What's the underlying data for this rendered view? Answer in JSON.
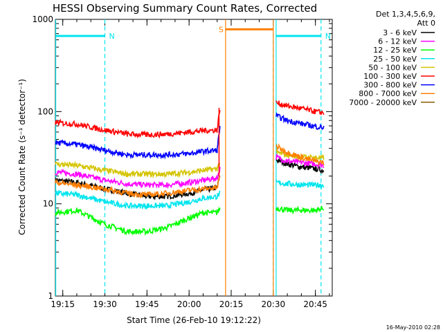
{
  "chart_data": {
    "type": "line",
    "title": "HESSI Observing Summary Count Rates, Corrected",
    "xlabel": "Start Time (26-Feb-10 19:12:22)",
    "ylabel": "Corrected Count Rate (s⁻¹ detector⁻¹)",
    "yscale": "log",
    "xlim": [
      "19:12:22",
      "20:51:00"
    ],
    "ylim": [
      1,
      1000
    ],
    "x_ticks": [
      "19:15",
      "19:30",
      "19:45",
      "20:00",
      "20:15",
      "20:30",
      "20:45"
    ],
    "y_ticks": [
      "1",
      "10",
      "100",
      "1000"
    ],
    "legend_title_lines": [
      "Det 1,3,4,5,6,9,",
      "Att 0"
    ],
    "legend_position": "right, outside plot",
    "footer": "16-May-2010 02:28",
    "gaps": [
      [
        "20:11:00",
        "20:30:00"
      ]
    ],
    "flags": [
      {
        "label": "N",
        "start": "19:12:22",
        "end": "19:30:00",
        "color": "#00e5ee",
        "level": 660
      },
      {
        "label": "N",
        "start": "20:31:00",
        "end": "20:47:00",
        "color": "#00e5ee",
        "level": 660
      },
      {
        "label": "S",
        "start": "20:13:00",
        "end": "20:30:00",
        "color": "#ff7f00",
        "level": 780
      }
    ],
    "vlines": [
      {
        "time": "19:12:30",
        "color": "#00e5ee",
        "style": "solid"
      },
      {
        "time": "19:30:00",
        "color": "#00e5ee",
        "style": "dashed"
      },
      {
        "time": "20:30:00",
        "color": "#00e5ee",
        "style": "dashed"
      },
      {
        "time": "20:31:00",
        "color": "#00e5ee",
        "style": "solid"
      },
      {
        "time": "20:47:00",
        "color": "#00e5ee",
        "style": "dashed"
      },
      {
        "time": "20:13:00",
        "color": "#ff7f00",
        "style": "solid"
      },
      {
        "time": "20:30:00",
        "color": "#ff7f00",
        "style": "solid"
      }
    ],
    "series": [
      {
        "name": "3 - 6 keV",
        "color": "#000000",
        "x": [
          "19:12:22",
          "19:20:00",
          "19:30:00",
          "19:38:00",
          "19:45:00",
          "19:52:00",
          "20:00:00",
          "20:05:00",
          "20:10:00",
          "20:11:00",
          "20:31:00",
          "20:35:00",
          "20:40:00",
          "20:45:00",
          "20:48:00"
        ],
        "y": [
          18,
          17,
          14.5,
          13,
          12,
          12,
          13,
          14,
          15,
          20,
          30,
          27,
          25,
          24,
          23
        ]
      },
      {
        "name": "6 - 12 keV",
        "color": "#ff00ff",
        "x": [
          "19:12:22",
          "19:20:00",
          "19:30:00",
          "19:38:00",
          "19:45:00",
          "19:52:00",
          "20:00:00",
          "20:05:00",
          "20:10:00",
          "20:11:00",
          "20:31:00",
          "20:35:00",
          "20:40:00",
          "20:45:00",
          "20:48:00"
        ],
        "y": [
          22,
          21,
          18,
          16.5,
          16,
          16,
          17,
          18,
          19,
          24,
          32,
          29,
          28,
          27,
          26
        ]
      },
      {
        "name": "12 - 25 keV",
        "color": "#00ff00",
        "x": [
          "19:12:22",
          "19:20:00",
          "19:30:00",
          "19:38:00",
          "19:45:00",
          "19:52:00",
          "20:00:00",
          "20:05:00",
          "20:10:00",
          "20:11:00",
          "20:31:00",
          "20:35:00",
          "20:40:00",
          "20:45:00",
          "20:48:00"
        ],
        "y": [
          8,
          8.5,
          6,
          5,
          5,
          5.5,
          7,
          8,
          8,
          9,
          9,
          8.5,
          8.5,
          8.5,
          9
        ]
      },
      {
        "name": "25 - 50 keV",
        "color": "#00e5ee",
        "x": [
          "19:12:22",
          "19:20:00",
          "19:30:00",
          "19:38:00",
          "19:45:00",
          "19:52:00",
          "20:00:00",
          "20:05:00",
          "20:10:00",
          "20:11:00",
          "20:31:00",
          "20:35:00",
          "20:40:00",
          "20:45:00",
          "20:48:00"
        ],
        "y": [
          13,
          12.5,
          10.5,
          9.5,
          9.5,
          9.5,
          10.5,
          11.5,
          12,
          13,
          17,
          16.5,
          16,
          16,
          16
        ]
      },
      {
        "name": "50 - 100 keV",
        "color": "#d4c400",
        "x": [
          "19:12:22",
          "19:20:00",
          "19:30:00",
          "19:38:00",
          "19:45:00",
          "19:52:00",
          "20:00:00",
          "20:05:00",
          "20:10:00",
          "20:11:00",
          "20:31:00",
          "20:35:00",
          "20:40:00",
          "20:45:00",
          "20:48:00"
        ],
        "y": [
          27,
          26,
          23,
          21,
          21,
          21,
          22,
          23,
          24,
          28,
          36,
          34,
          32,
          32,
          31
        ]
      },
      {
        "name": "100 - 300 keV",
        "color": "#ff0000",
        "x": [
          "19:12:22",
          "19:20:00",
          "19:30:00",
          "19:38:00",
          "19:45:00",
          "19:52:00",
          "20:00:00",
          "20:05:00",
          "20:10:00",
          "20:11:00",
          "20:31:00",
          "20:35:00",
          "20:40:00",
          "20:45:00",
          "20:48:00"
        ],
        "y": [
          76,
          73,
          63,
          57,
          56,
          57,
          60,
          62,
          63,
          110,
          125,
          115,
          108,
          100,
          97
        ]
      },
      {
        "name": "300 - 800 keV",
        "color": "#0000ff",
        "x": [
          "19:12:22",
          "19:20:00",
          "19:30:00",
          "19:38:00",
          "19:45:00",
          "19:52:00",
          "20:00:00",
          "20:05:00",
          "20:10:00",
          "20:11:00",
          "20:31:00",
          "20:35:00",
          "20:40:00",
          "20:45:00",
          "20:48:00"
        ],
        "y": [
          46,
          44,
          38,
          34,
          34,
          34,
          35,
          37,
          38,
          70,
          90,
          80,
          74,
          69,
          67
        ]
      },
      {
        "name": "800 - 7000 keV",
        "color": "#ff7f00",
        "x": [
          "19:12:22",
          "19:20:00",
          "19:30:00",
          "19:38:00",
          "19:45:00",
          "19:52:00",
          "20:00:00",
          "20:05:00",
          "20:10:00",
          "20:11:00",
          "20:31:00",
          "20:35:00",
          "20:40:00",
          "20:45:00",
          "20:48:00"
        ],
        "y": [
          17,
          16,
          14.5,
          13,
          12.5,
          13,
          14,
          14.5,
          15,
          20,
          42,
          36,
          32,
          29,
          28
        ]
      },
      {
        "name": "7000 - 20000 keV",
        "color": "#8b5a00",
        "x": [],
        "y": []
      }
    ]
  }
}
